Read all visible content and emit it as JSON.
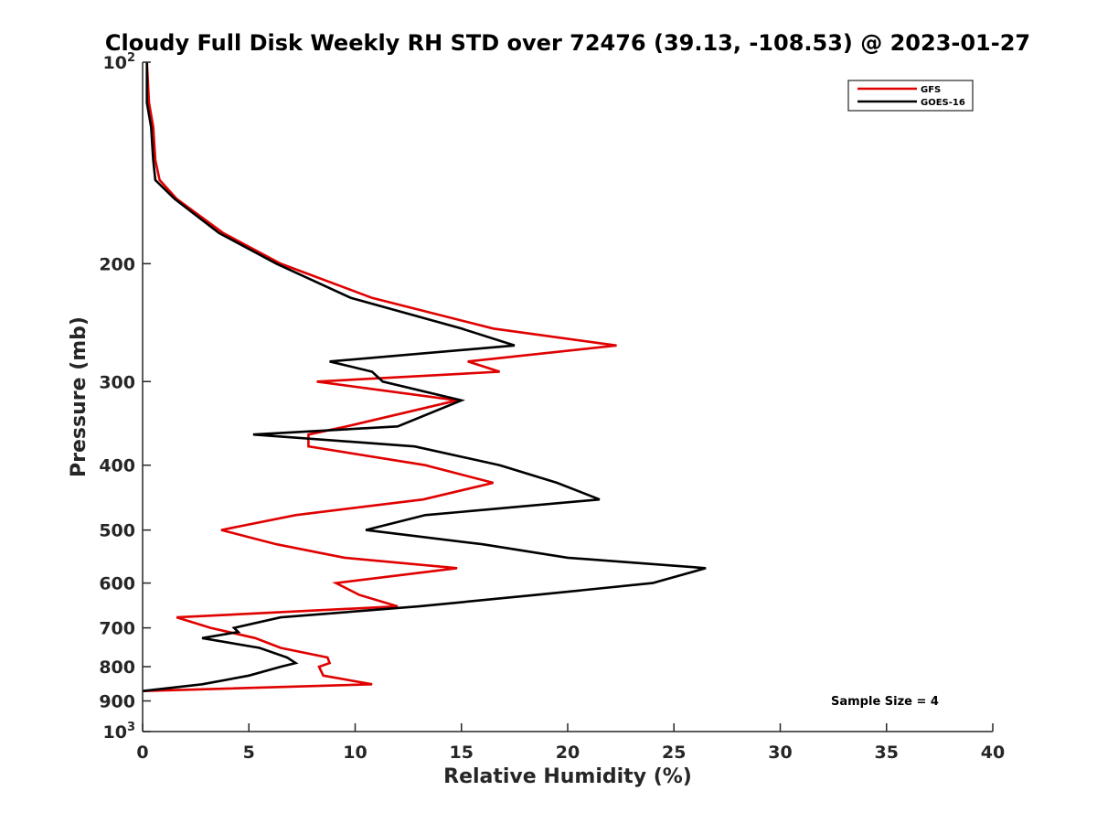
{
  "chart_data": {
    "type": "line",
    "title": "Cloudy Full Disk Weekly RH STD over 72476 (39.13, -108.53) @ 2023-01-27",
    "xlabel": "Relative Humidity (%)",
    "ylabel": "Pressure (mb)",
    "xlim": [
      0,
      40
    ],
    "ylim": [
      100,
      1000
    ],
    "y_scale": "log",
    "y_reversed": true,
    "x_ticks": [
      0,
      5,
      10,
      15,
      20,
      25,
      30,
      35,
      40
    ],
    "x_tick_labels": [
      "0",
      "5",
      "10",
      "15",
      "20",
      "25",
      "30",
      "35",
      "40"
    ],
    "y_ticks": [
      100,
      200,
      300,
      400,
      500,
      600,
      700,
      800,
      900,
      1000
    ],
    "y_tick_labels": [
      {
        "base": "10",
        "exp": "2"
      },
      {
        "base": "200",
        "exp": ""
      },
      {
        "base": "300",
        "exp": ""
      },
      {
        "base": "400",
        "exp": ""
      },
      {
        "base": "500",
        "exp": ""
      },
      {
        "base": "600",
        "exp": ""
      },
      {
        "base": "700",
        "exp": ""
      },
      {
        "base": "800",
        "exp": ""
      },
      {
        "base": "900",
        "exp": ""
      },
      {
        "base": "10",
        "exp": "3"
      }
    ],
    "grid": false,
    "legend_position": "top-right",
    "annotation": "Sample Size = 4",
    "series": [
      {
        "name": "GFS",
        "color": "#e00000",
        "points": [
          [
            0.2,
            100
          ],
          [
            0.3,
            115
          ],
          [
            0.5,
            125
          ],
          [
            0.6,
            140
          ],
          [
            0.8,
            150
          ],
          [
            1.6,
            160
          ],
          [
            3.8,
            180
          ],
          [
            6.5,
            200
          ],
          [
            10.8,
            225
          ],
          [
            16.5,
            250
          ],
          [
            22.3,
            265
          ],
          [
            15.3,
            280
          ],
          [
            16.8,
            290
          ],
          [
            8.2,
            300
          ],
          [
            14.8,
            320
          ],
          [
            9.6,
            350
          ],
          [
            7.8,
            360
          ],
          [
            7.8,
            375
          ],
          [
            13.3,
            400
          ],
          [
            16.5,
            425
          ],
          [
            13.2,
            450
          ],
          [
            7.2,
            475
          ],
          [
            3.7,
            500
          ],
          [
            6.3,
            525
          ],
          [
            9.5,
            550
          ],
          [
            14.8,
            570
          ],
          [
            9.1,
            600
          ],
          [
            10.2,
            625
          ],
          [
            12.0,
            650
          ],
          [
            1.6,
            675
          ],
          [
            3.2,
            700
          ],
          [
            5.3,
            725
          ],
          [
            6.5,
            750
          ],
          [
            8.7,
            775
          ],
          [
            8.8,
            790
          ],
          [
            8.3,
            800
          ],
          [
            8.5,
            825
          ],
          [
            10.8,
            850
          ],
          [
            0.0,
            870
          ]
        ]
      },
      {
        "name": "GOES-16",
        "color": "#000000",
        "points": [
          [
            0.2,
            100
          ],
          [
            0.2,
            115
          ],
          [
            0.4,
            125
          ],
          [
            0.5,
            140
          ],
          [
            0.6,
            150
          ],
          [
            1.5,
            160
          ],
          [
            3.6,
            180
          ],
          [
            6.3,
            200
          ],
          [
            9.8,
            225
          ],
          [
            15.0,
            250
          ],
          [
            17.5,
            265
          ],
          [
            8.8,
            280
          ],
          [
            10.8,
            290
          ],
          [
            11.3,
            300
          ],
          [
            15.0,
            320
          ],
          [
            12.0,
            350
          ],
          [
            5.2,
            360
          ],
          [
            12.8,
            375
          ],
          [
            16.8,
            400
          ],
          [
            19.5,
            425
          ],
          [
            21.5,
            450
          ],
          [
            13.3,
            475
          ],
          [
            10.5,
            500
          ],
          [
            16.0,
            525
          ],
          [
            20.0,
            550
          ],
          [
            26.5,
            570
          ],
          [
            24.0,
            600
          ],
          [
            18.5,
            625
          ],
          [
            13.0,
            650
          ],
          [
            6.5,
            675
          ],
          [
            4.3,
            700
          ],
          [
            4.5,
            710
          ],
          [
            2.8,
            725
          ],
          [
            5.5,
            750
          ],
          [
            6.8,
            775
          ],
          [
            7.2,
            790
          ],
          [
            6.5,
            800
          ],
          [
            5.0,
            825
          ],
          [
            2.8,
            850
          ],
          [
            0.0,
            870
          ]
        ]
      }
    ]
  }
}
